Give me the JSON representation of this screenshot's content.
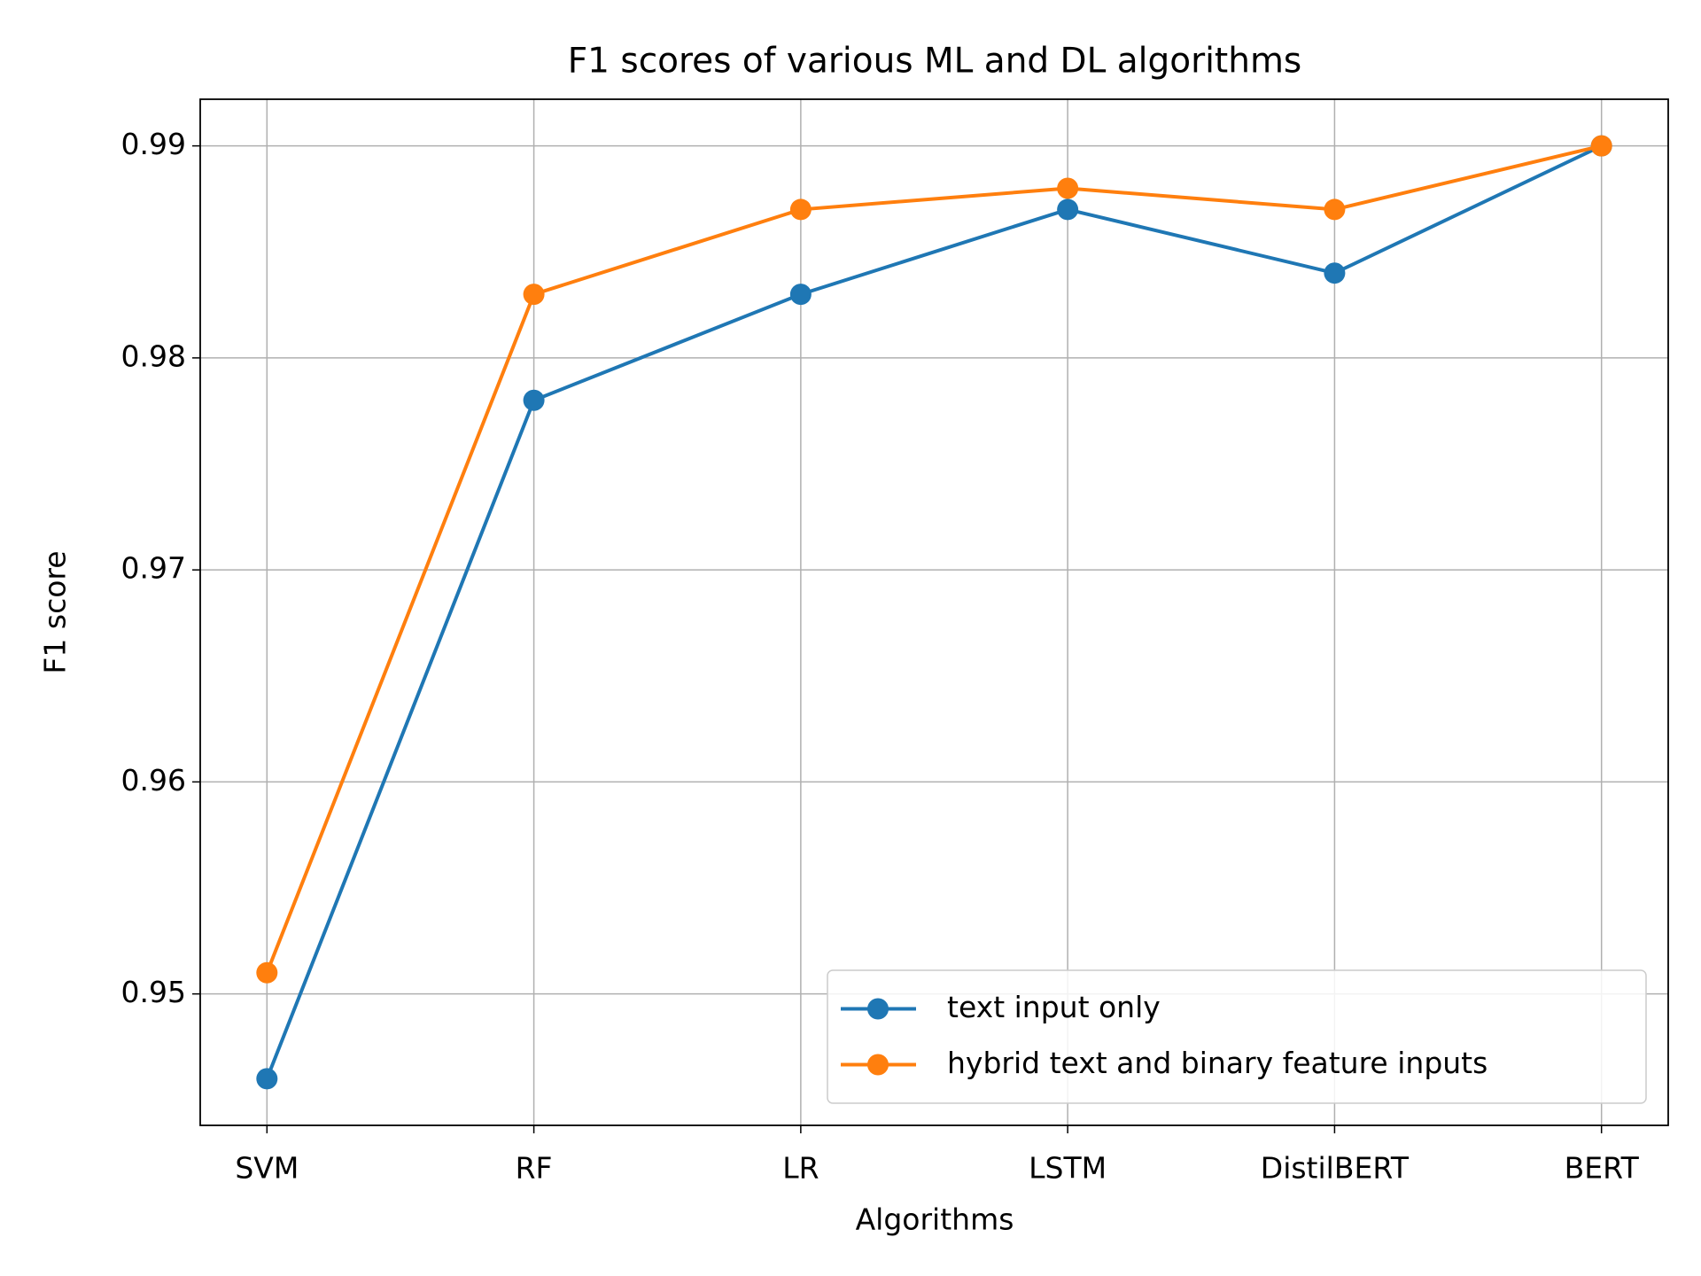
{
  "chart_data": {
    "type": "line",
    "title": "F1 scores of various ML and DL algorithms",
    "x_label": "Algorithms",
    "y_label": "F1 score",
    "categories": [
      "SVM",
      "RF",
      "LR",
      "LSTM",
      "DistilBERT",
      "BERT"
    ],
    "series": [
      {
        "name": "text input only",
        "color": "#1f77b4",
        "values": [
          0.946,
          0.978,
          0.983,
          0.987,
          0.984,
          0.99
        ]
      },
      {
        "name": "hybrid text and binary feature inputs",
        "color": "#ff7f0e",
        "values": [
          0.951,
          0.983,
          0.987,
          0.988,
          0.987,
          0.99
        ]
      }
    ],
    "ylim": [
      0.9438,
      0.9922
    ],
    "yticks": [
      0.95,
      0.96,
      0.97,
      0.98,
      0.99
    ],
    "grid": true,
    "legend": "lower right"
  }
}
